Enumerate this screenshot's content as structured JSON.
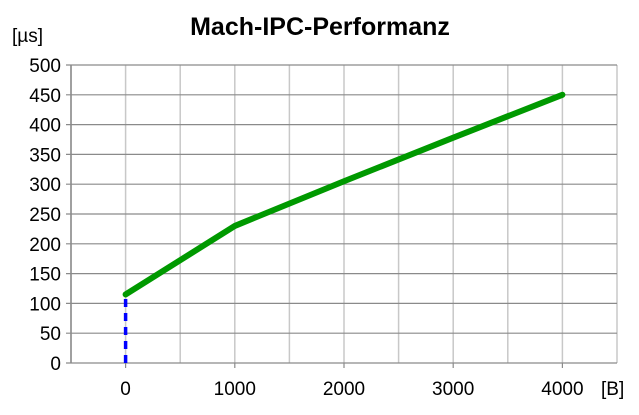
{
  "chart_data": {
    "type": "line",
    "title": "Mach-IPC-Performanz",
    "xlabel": "[B]",
    "ylabel": "[µs]",
    "xlim": [
      -500,
      4500
    ],
    "ylim": [
      0,
      500
    ],
    "x_ticks": [
      0,
      1000,
      2000,
      3000,
      4000
    ],
    "y_ticks": [
      0,
      50,
      100,
      150,
      200,
      250,
      300,
      350,
      400,
      450,
      500
    ],
    "grid": true,
    "series": [
      {
        "x": [
          0,
          1000,
          2000,
          3000,
          4000
        ],
        "y": [
          115,
          230,
          305,
          378,
          450
        ],
        "color": "#009900",
        "style": "solid"
      },
      {
        "x": [
          0,
          0
        ],
        "y": [
          0,
          115
        ],
        "color": "#0000ff",
        "style": "dashed"
      }
    ]
  }
}
